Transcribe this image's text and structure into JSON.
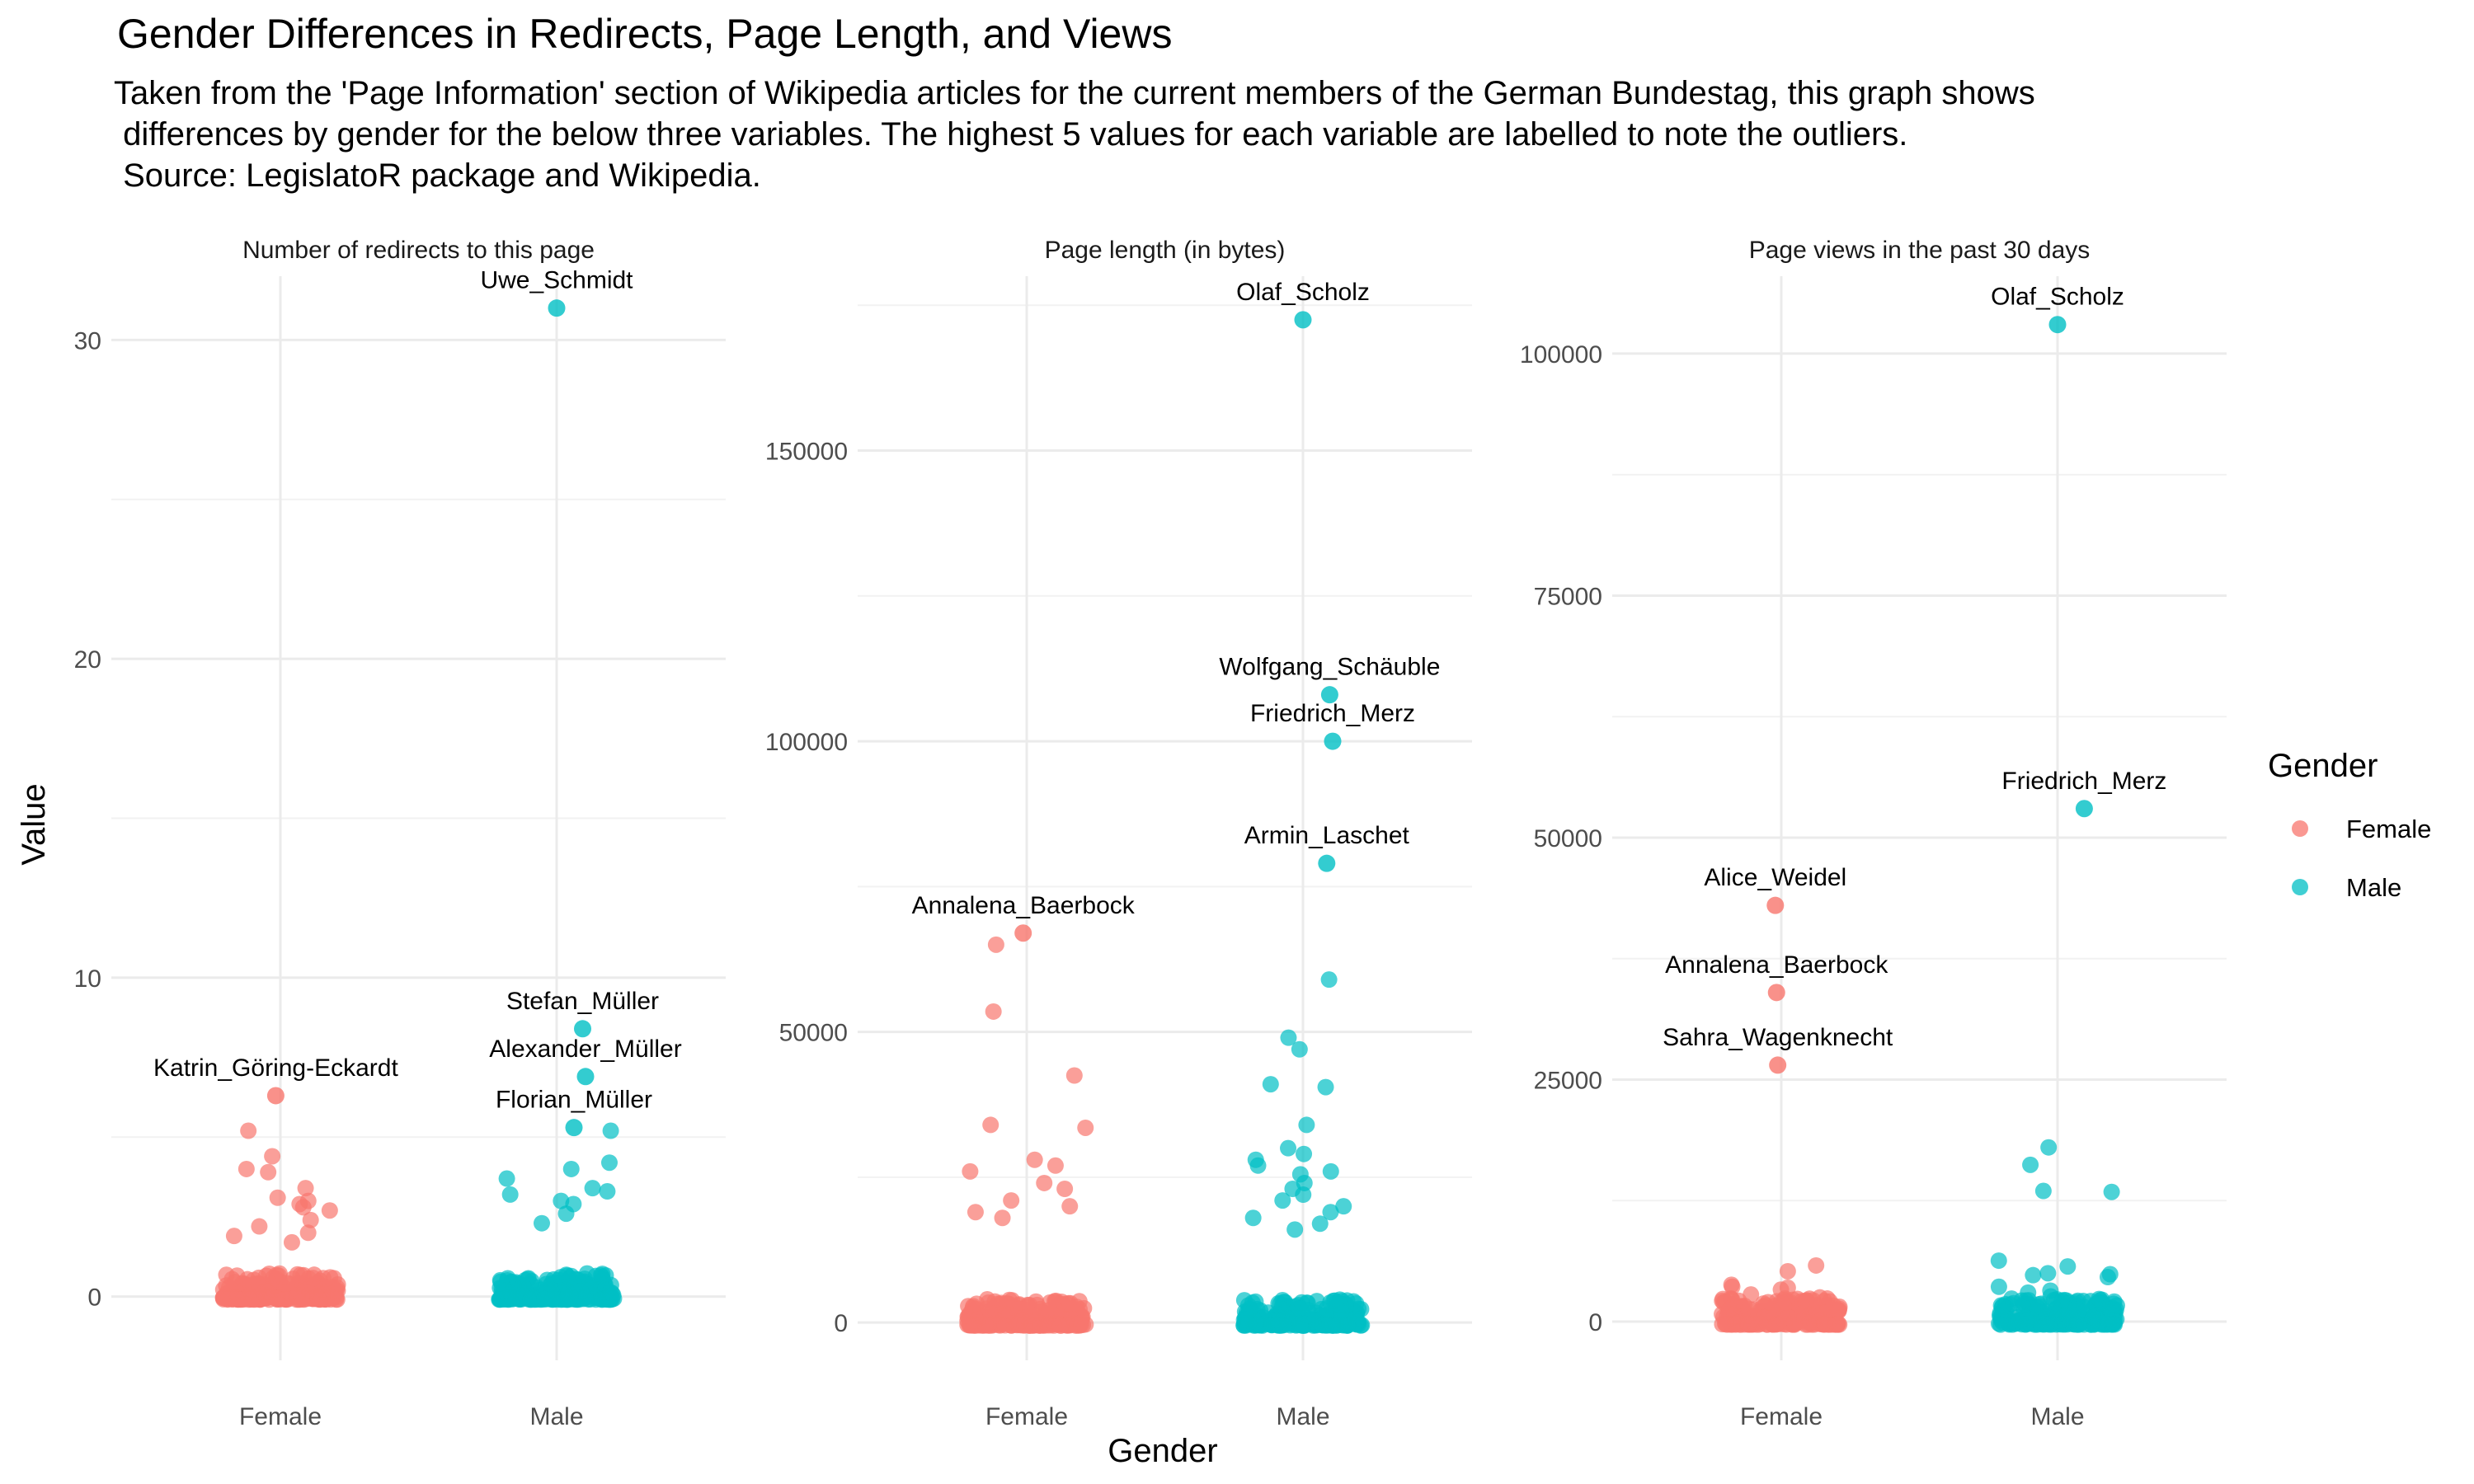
{
  "title": "Gender Differences in Redirects, Page Length, and Views",
  "subtitle": "Taken from the 'Page Information' section of Wikipedia articles for the current members of the German Bundestag, this graph shows\n differences by gender for the below three variables. The highest 5 values for each variable are labelled to note the outliers.\n Source: LegislatoR package and Wikipedia.",
  "colors": {
    "Female": "#F8766D",
    "Male": "#00BFC4"
  },
  "chart_data": {
    "type": "scatter",
    "xlabel": "Gender",
    "ylabel": "Value",
    "categories": [
      "Female",
      "Male"
    ],
    "grid": true,
    "legend": {
      "title": "Gender",
      "position": "right",
      "entries": [
        "Female",
        "Male"
      ]
    },
    "panels": [
      {
        "title": "Number of redirects to this page",
        "ylim": [
          -2,
          32
        ],
        "yticks": [
          0,
          10,
          20,
          30
        ],
        "highlighted": [
          {
            "label": "Uwe_Schmidt",
            "gender": "Male",
            "value": 31
          },
          {
            "label": "Stefan_Müller",
            "gender": "Male",
            "value": 8.4
          },
          {
            "label": "Alexander_Müller",
            "gender": "Male",
            "value": 6.9
          },
          {
            "label": "Katrin_Göring-Eckardt",
            "gender": "Female",
            "value": 6.3
          },
          {
            "label": "Florian_Müller",
            "gender": "Male",
            "value": 5.3
          }
        ],
        "outliers": {
          "Female": [
            5.2,
            4.4,
            4.0,
            3.9,
            3.4,
            3.1,
            3.0,
            2.9,
            2.8,
            2.7,
            2.4,
            2.2,
            2.0,
            1.9,
            1.7
          ],
          "Male": [
            5.2,
            4.2,
            4.0,
            3.7,
            3.4,
            3.3,
            3.2,
            3.0,
            2.9,
            2.6,
            2.3
          ]
        }
      },
      {
        "title": "Page length (in bytes)",
        "ylim": [
          -6500,
          180000
        ],
        "yticks": [
          0,
          50000,
          100000,
          150000
        ],
        "highlighted": [
          {
            "label": "Olaf_Scholz",
            "gender": "Male",
            "value": 172500
          },
          {
            "label": "Wolfgang_Schäuble",
            "gender": "Male",
            "value": 108000
          },
          {
            "label": "Friedrich_Merz",
            "gender": "Male",
            "value": 100000
          },
          {
            "label": "Armin_Laschet",
            "gender": "Male",
            "value": 79000
          },
          {
            "label": "Annalena_Baerbock",
            "gender": "Female",
            "value": 67000
          }
        ],
        "outliers": {
          "Female": [
            65000,
            53500,
            42500,
            34000,
            33500,
            28000,
            27000,
            26000,
            24000,
            23000,
            21000,
            20000,
            19000,
            18000
          ],
          "Male": [
            59000,
            49000,
            47000,
            41000,
            40500,
            34000,
            30000,
            29000,
            28000,
            27000,
            26000,
            25500,
            24000,
            23000,
            22000,
            21000,
            20000,
            19000,
            18000,
            17000,
            16000
          ]
        }
      },
      {
        "title": "Page views in the past 30 days",
        "ylim": [
          -4000,
          108000
        ],
        "yticks": [
          0,
          25000,
          50000,
          75000,
          100000
        ],
        "highlighted": [
          {
            "label": "Olaf_Scholz",
            "gender": "Male",
            "value": 103000
          },
          {
            "label": "Friedrich_Merz",
            "gender": "Male",
            "value": 53000
          },
          {
            "label": "Alice_Weidel",
            "gender": "Female",
            "value": 43000
          },
          {
            "label": "Annalena_Baerbock",
            "gender": "Female",
            "value": 34000
          },
          {
            "label": "Sahra_Wagenknecht",
            "gender": "Female",
            "value": 26500
          }
        ],
        "outliers": {
          "Female": [
            5800,
            5200,
            3800,
            3600,
            3500,
            3300,
            2800,
            2500,
            2200,
            1900,
            1700,
            1500
          ],
          "Male": [
            18000,
            16200,
            13500,
            13400,
            6300,
            5700,
            5000,
            4900,
            4800,
            4600,
            3600,
            3200,
            3000,
            2600
          ]
        }
      }
    ]
  }
}
